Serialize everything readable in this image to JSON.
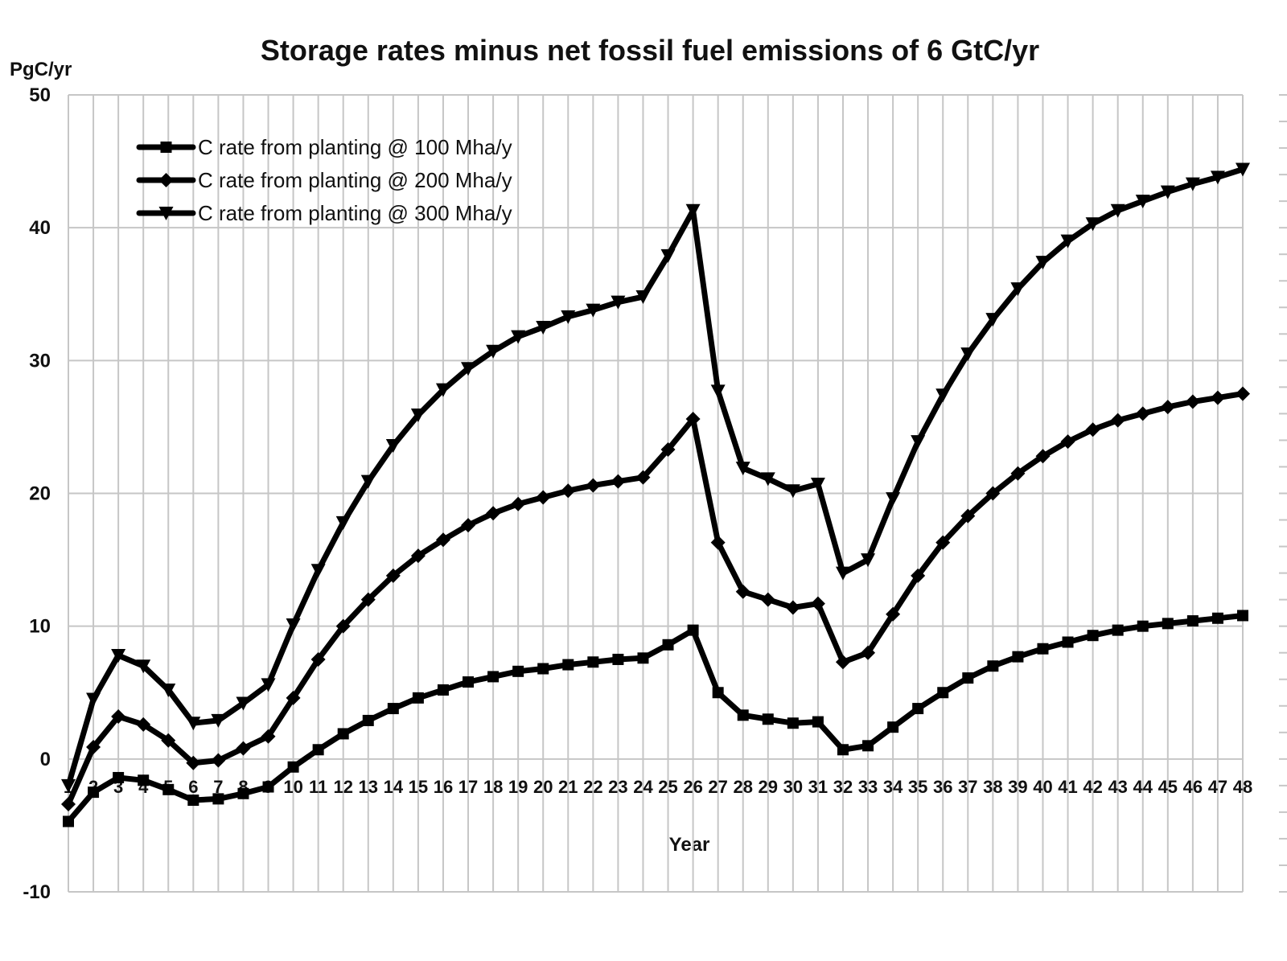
{
  "chart_data": {
    "type": "line",
    "title": "Storage rates minus net fossil fuel emissions of 6 GtC/yr",
    "xlabel": "Year",
    "ylabel": "PgC/yr",
    "ylim": [
      -10,
      50
    ],
    "yticks": [
      -10,
      0,
      10,
      20,
      30,
      40,
      50
    ],
    "grid": true,
    "legend_position": "top-left",
    "categories": [
      "1",
      "2",
      "3",
      "4",
      "5",
      "6",
      "7",
      "8",
      "9",
      "10",
      "11",
      "12",
      "13",
      "14",
      "15",
      "16",
      "17",
      "18",
      "19",
      "20",
      "21",
      "22",
      "23",
      "24",
      "25",
      "26",
      "27",
      "28",
      "29",
      "30",
      "31",
      "32",
      "33",
      "34",
      "35",
      "36",
      "37",
      "38",
      "39",
      "40",
      "41",
      "42",
      "43",
      "44",
      "45",
      "46",
      "47",
      "48"
    ],
    "series": [
      {
        "name": "C rate from planting @ 100 Mha/y",
        "marker": "square",
        "values": [
          -4.7,
          -2.5,
          -1.4,
          -1.6,
          -2.3,
          -3.1,
          -3.0,
          -2.6,
          -2.1,
          -0.6,
          0.7,
          1.9,
          2.9,
          3.8,
          4.6,
          5.2,
          5.8,
          6.2,
          6.6,
          6.8,
          7.1,
          7.3,
          7.5,
          7.6,
          8.6,
          9.7,
          5.0,
          3.3,
          3.0,
          2.7,
          2.8,
          0.7,
          1.0,
          2.4,
          3.8,
          5.0,
          6.1,
          7.0,
          7.7,
          8.3,
          8.8,
          9.3,
          9.7,
          10.0,
          10.2,
          10.4,
          10.6,
          10.8
        ]
      },
      {
        "name": "C rate from planting @ 200 Mha/y",
        "marker": "diamond",
        "values": [
          -3.4,
          0.9,
          3.2,
          2.6,
          1.4,
          -0.3,
          -0.1,
          0.8,
          1.7,
          4.6,
          7.5,
          10.0,
          12.0,
          13.8,
          15.3,
          16.5,
          17.6,
          18.5,
          19.2,
          19.7,
          20.2,
          20.6,
          20.9,
          21.2,
          23.3,
          25.6,
          16.3,
          12.6,
          12.0,
          11.4,
          11.7,
          7.3,
          8.0,
          10.9,
          13.8,
          16.3,
          18.3,
          20.0,
          21.5,
          22.8,
          23.9,
          24.8,
          25.5,
          26.0,
          26.5,
          26.9,
          27.2,
          27.5
        ]
      },
      {
        "name": "C rate from planting @ 300 Mha/y",
        "marker": "triangle-down",
        "values": [
          -2.0,
          4.5,
          7.8,
          7.0,
          5.2,
          2.7,
          2.9,
          4.2,
          5.6,
          10.1,
          14.2,
          17.8,
          20.9,
          23.6,
          25.9,
          27.8,
          29.4,
          30.7,
          31.8,
          32.5,
          33.3,
          33.8,
          34.4,
          34.8,
          37.9,
          41.3,
          27.7,
          21.9,
          21.1,
          20.2,
          20.7,
          14.0,
          15.0,
          19.6,
          23.9,
          27.4,
          30.5,
          33.1,
          35.4,
          37.4,
          39.0,
          40.3,
          41.3,
          42.0,
          42.7,
          43.3,
          43.8,
          44.4
        ]
      }
    ]
  }
}
